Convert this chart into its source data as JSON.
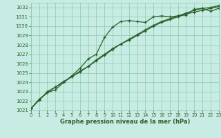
{
  "xlabel": "Graphe pression niveau de la mer (hPa)",
  "ylim": [
    1021,
    1032.5
  ],
  "xlim": [
    0,
    23
  ],
  "yticks": [
    1021,
    1022,
    1023,
    1024,
    1025,
    1026,
    1027,
    1028,
    1029,
    1030,
    1031,
    1032
  ],
  "xticks": [
    0,
    1,
    2,
    3,
    4,
    5,
    6,
    7,
    8,
    9,
    10,
    11,
    12,
    13,
    14,
    15,
    16,
    17,
    18,
    19,
    20,
    21,
    22,
    23
  ],
  "background_color": "#c8ece4",
  "grid_color": "#88ccaa",
  "line_color": "#2a602a",
  "series1_x": [
    0,
    1,
    2,
    3,
    4,
    5,
    6,
    7,
    8,
    9,
    10,
    11,
    12,
    13,
    14,
    15,
    16,
    17,
    18,
    19,
    20,
    21,
    22,
    23
  ],
  "series1_y": [
    1021.2,
    1022.2,
    1022.9,
    1023.2,
    1024.0,
    1024.7,
    1025.5,
    1026.5,
    1027.0,
    1028.8,
    1029.9,
    1030.5,
    1030.6,
    1030.5,
    1030.4,
    1031.0,
    1031.1,
    1031.0,
    1031.1,
    1031.2,
    1031.8,
    1031.9,
    1031.6,
    1031.9
  ],
  "series2_x": [
    0,
    1,
    2,
    3,
    4,
    5,
    6,
    7,
    8,
    9,
    10,
    11,
    12,
    13,
    14,
    15,
    16,
    17,
    18,
    19,
    20,
    21,
    22,
    23
  ],
  "series2_y": [
    1021.2,
    1022.1,
    1023.0,
    1023.5,
    1024.1,
    1024.6,
    1025.2,
    1025.7,
    1026.3,
    1026.9,
    1027.5,
    1028.1,
    1028.5,
    1029.0,
    1029.5,
    1030.0,
    1030.4,
    1030.7,
    1031.0,
    1031.3,
    1031.5,
    1031.7,
    1031.9,
    1032.1
  ],
  "series3_x": [
    0,
    1,
    2,
    3,
    4,
    5,
    6,
    7,
    8,
    9,
    10,
    11,
    12,
    13,
    14,
    15,
    16,
    17,
    18,
    19,
    20,
    21,
    22,
    23
  ],
  "series3_y": [
    1021.2,
    1022.1,
    1022.9,
    1023.5,
    1024.0,
    1024.6,
    1025.1,
    1025.7,
    1026.4,
    1027.0,
    1027.6,
    1028.1,
    1028.6,
    1029.1,
    1029.6,
    1030.1,
    1030.5,
    1030.8,
    1031.1,
    1031.4,
    1031.7,
    1031.9,
    1032.0,
    1032.2
  ],
  "ylabel_fontsize": 5,
  "xlabel_fontsize": 6,
  "tick_labelsize": 4.8,
  "linewidth": 0.9,
  "markersize": 3.2,
  "markeredgewidth": 0.9
}
